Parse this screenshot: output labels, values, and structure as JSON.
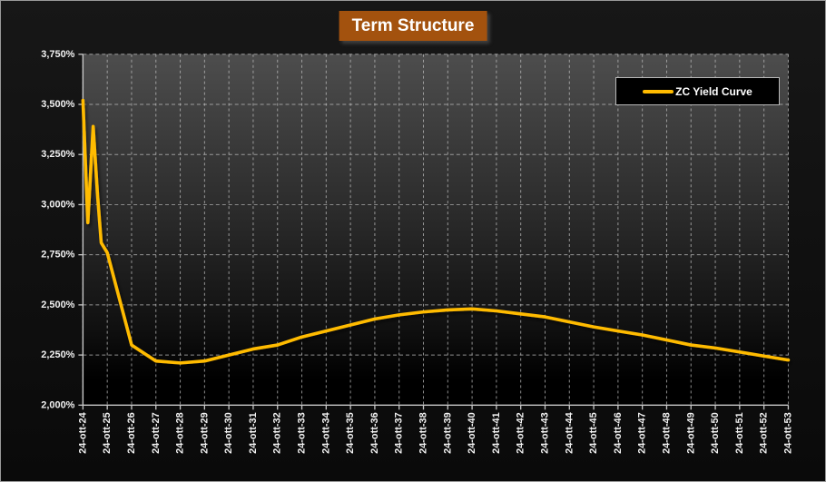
{
  "window": {
    "bg": "#111111",
    "border_color": "#9a9a9a"
  },
  "title": {
    "text": "Term Structure",
    "bg": "#A3520E",
    "text_color": "#FFFFFF"
  },
  "legend": {
    "label": "ZC Yield Curve",
    "line_color": "#FFBB00",
    "bg": "#000000",
    "border_color": "#B8B8B8",
    "text_color": "#FFFFFF"
  },
  "axes": {
    "gridline_color": "#BDBDBD",
    "axis_color": "#C8C8C8",
    "label_color": "#F1F1F1"
  },
  "plot": {
    "bg_stops": [
      [
        "0%",
        "#4D4D4D"
      ],
      [
        "45%",
        "#2B2B2B"
      ],
      [
        "78%",
        "#101010"
      ],
      [
        "93%",
        "#000000"
      ],
      [
        "100%",
        "#000000"
      ]
    ]
  },
  "chart_data": {
    "type": "line",
    "title": "Term Structure",
    "xlabel": "",
    "ylabel": "",
    "grid": true,
    "legend_position": "upper right",
    "ylim": [
      2.0,
      3.75
    ],
    "y_ticks": [
      {
        "value": 2.0,
        "label": "2,000%"
      },
      {
        "value": 2.25,
        "label": "2,250%"
      },
      {
        "value": 2.5,
        "label": "2,500%"
      },
      {
        "value": 2.75,
        "label": "2,750%"
      },
      {
        "value": 3.0,
        "label": "3,000%"
      },
      {
        "value": 3.25,
        "label": "3,250%"
      },
      {
        "value": 3.5,
        "label": "3,500%"
      },
      {
        "value": 3.75,
        "label": "3,750%"
      }
    ],
    "categories": [
      "24-ott-24",
      "24-ott-25",
      "24-ott-26",
      "24-ott-27",
      "24-ott-28",
      "24-ott-29",
      "24-ott-30",
      "24-ott-31",
      "24-ott-32",
      "24-ott-33",
      "24-ott-34",
      "24-ott-35",
      "24-ott-36",
      "24-ott-37",
      "24-ott-38",
      "24-ott-39",
      "24-ott-40",
      "24-ott-41",
      "24-ott-42",
      "24-ott-43",
      "24-ott-44",
      "24-ott-45",
      "24-ott-46",
      "24-ott-47",
      "24-ott-48",
      "24-ott-49",
      "24-ott-50",
      "24-ott-51",
      "24-ott-52",
      "24-ott-53"
    ],
    "series": [
      {
        "name": "ZC Yield Curve",
        "color": "#FFBB00",
        "unit": "%",
        "points": [
          [
            0,
            3.52
          ],
          [
            0.2,
            2.91
          ],
          [
            0.42,
            3.39
          ],
          [
            0.6,
            3.05
          ],
          [
            0.75,
            2.81
          ],
          [
            1,
            2.76
          ],
          [
            2,
            2.3
          ],
          [
            3,
            2.22
          ],
          [
            4,
            2.21
          ],
          [
            5,
            2.22
          ],
          [
            6,
            2.25
          ],
          [
            7,
            2.28
          ],
          [
            8,
            2.3
          ],
          [
            9,
            2.34
          ],
          [
            10,
            2.37
          ],
          [
            11,
            2.4
          ],
          [
            12,
            2.43
          ],
          [
            13,
            2.45
          ],
          [
            14,
            2.465
          ],
          [
            15,
            2.475
          ],
          [
            16,
            2.48
          ],
          [
            17,
            2.47
          ],
          [
            18,
            2.455
          ],
          [
            19,
            2.44
          ],
          [
            20,
            2.415
          ],
          [
            21,
            2.39
          ],
          [
            22,
            2.37
          ],
          [
            23,
            2.35
          ],
          [
            24,
            2.325
          ],
          [
            25,
            2.3
          ],
          [
            26,
            2.285
          ],
          [
            27,
            2.265
          ],
          [
            28,
            2.245
          ],
          [
            29,
            2.225
          ]
        ]
      }
    ]
  }
}
